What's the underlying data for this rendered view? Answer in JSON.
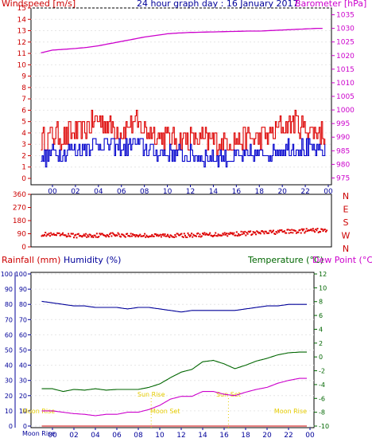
{
  "chart_data": [
    {
      "type": "line",
      "title": "24 hour graph day : 16 January 2017",
      "left_label": "Windspeed [m/s]",
      "right_label": "Barometer [hPa]",
      "x_ticks": [
        "00",
        "02",
        "04",
        "06",
        "08",
        "10",
        "12",
        "14",
        "16",
        "18",
        "20",
        "22",
        "00"
      ],
      "y_left_ticks": [
        0,
        1,
        2,
        3,
        4,
        5,
        6,
        7,
        8,
        9,
        10,
        11,
        12,
        13,
        14,
        15
      ],
      "y_left_range": [
        0,
        15
      ],
      "y_right_ticks": [
        975,
        980,
        985,
        990,
        995,
        1000,
        1005,
        1010,
        1015,
        1020,
        1025,
        1030,
        1035
      ],
      "y_right_range": [
        972.5,
        1037.5
      ],
      "colors": {
        "gust": "#dd0000",
        "average": "#0000cc",
        "barometer": "#cc00cc"
      },
      "series": [
        {
          "name": "Gust",
          "axis": "left",
          "x_hours": [
            -1,
            0,
            1,
            2,
            3,
            4,
            5,
            6,
            7,
            8,
            9,
            10,
            11,
            12,
            13,
            14,
            15,
            16,
            17,
            18,
            19,
            20,
            21,
            22,
            23
          ],
          "values": [
            3.2,
            3.8,
            3.7,
            4.0,
            4.5,
            5.2,
            4.6,
            4.1,
            5.0,
            4.3,
            3.9,
            3.6,
            3.5,
            3.4,
            3.4,
            3.3,
            3.2,
            3.3,
            3.5,
            3.5,
            3.9,
            4.6,
            4.9,
            4.3,
            4.1
          ]
        },
        {
          "name": "Average",
          "axis": "left",
          "x_hours": [
            -1,
            0,
            1,
            2,
            3,
            4,
            5,
            6,
            7,
            8,
            9,
            10,
            11,
            12,
            13,
            14,
            15,
            16,
            17,
            18,
            19,
            20,
            21,
            22,
            23
          ],
          "values": [
            1.6,
            2.4,
            2.3,
            2.5,
            2.8,
            3.1,
            2.9,
            2.6,
            3.1,
            2.7,
            2.4,
            2.2,
            2.1,
            2.0,
            2.0,
            1.9,
            1.8,
            1.9,
            2.0,
            2.1,
            2.4,
            2.7,
            2.9,
            2.6,
            2.4
          ]
        },
        {
          "name": "Barometer",
          "axis": "right",
          "x_hours": [
            -1,
            0,
            1,
            2,
            3,
            4,
            5,
            6,
            7,
            8,
            9,
            10,
            11,
            12,
            13,
            14,
            15,
            16,
            17,
            18,
            19,
            20,
            21,
            22,
            23
          ],
          "values": [
            1021,
            1022,
            1022.3,
            1022.6,
            1023,
            1023.6,
            1024.4,
            1025.2,
            1026,
            1026.8,
            1027.4,
            1028,
            1028.3,
            1028.5,
            1028.6,
            1028.7,
            1028.8,
            1028.9,
            1029,
            1029,
            1029.2,
            1029.4,
            1029.6,
            1029.8,
            1030
          ]
        }
      ]
    },
    {
      "type": "scatter",
      "y_left_ticks": [
        0,
        90,
        180,
        270,
        360
      ],
      "y_left_range": [
        0,
        360
      ],
      "y_right_ticks": [
        "N",
        "W",
        "S",
        "E",
        "N"
      ],
      "x_ticks": [
        "00",
        "02",
        "04",
        "06",
        "08",
        "10",
        "12",
        "14",
        "16",
        "18",
        "20",
        "22",
        "00"
      ],
      "series": [
        {
          "name": "Wind direction",
          "color": "#dd0000",
          "x_hours": [
            -1,
            0,
            1,
            2,
            3,
            4,
            5,
            6,
            7,
            8,
            9,
            10,
            11,
            12,
            13,
            14,
            15,
            16,
            17,
            18,
            19,
            20,
            21,
            22,
            23
          ],
          "values": [
            88,
            80,
            82,
            76,
            78,
            80,
            84,
            82,
            80,
            78,
            76,
            80,
            78,
            80,
            82,
            84,
            88,
            90,
            94,
            96,
            100,
            104,
            106,
            110,
            112
          ]
        }
      ]
    },
    {
      "type": "line",
      "left_label": "Rainfall (mm)",
      "left_label2": "Humidity (%)",
      "right_label": "Temperature (°C)",
      "right_label2": "Dew Point (°C)",
      "y_left_ticks": [
        0,
        10,
        20,
        30,
        40,
        50,
        60,
        70,
        80,
        90,
        100
      ],
      "y_left_range": [
        0,
        100
      ],
      "y_right_ticks": [
        -10,
        -8,
        -6,
        -4,
        -2,
        0,
        2,
        4,
        6,
        8,
        10,
        12
      ],
      "y_right_range": [
        -10,
        12
      ],
      "x_ticks": [
        "00",
        "02",
        "04",
        "06",
        "08",
        "10",
        "12",
        "14",
        "16",
        "18",
        "20",
        "22",
        "00"
      ],
      "annotations": [
        "Sun Rise",
        "Sun Set",
        "Moon Set",
        "Moon Rise",
        "Moon Rise"
      ],
      "colors": {
        "humidity": "#000099",
        "temperature": "#006600",
        "dewpoint": "#cc00cc",
        "rain": "#cc0000",
        "sun": "#e6cc00"
      },
      "series": [
        {
          "name": "Humidity",
          "axis": "left",
          "x_hours": [
            -1,
            0,
            1,
            2,
            3,
            4,
            5,
            6,
            7,
            8,
            9,
            10,
            11,
            12,
            13,
            14,
            15,
            16,
            17,
            18,
            19,
            20,
            21,
            22,
            23
          ],
          "values": [
            82,
            81,
            80,
            79,
            79,
            78,
            78,
            78,
            77,
            78,
            78,
            77,
            76,
            75,
            76,
            76,
            76,
            76,
            76,
            77,
            78,
            79,
            79,
            80,
            80
          ]
        },
        {
          "name": "Temperature",
          "axis": "right",
          "x_hours": [
            -1,
            0,
            1,
            2,
            3,
            4,
            5,
            6,
            7,
            8,
            9,
            10,
            11,
            12,
            13,
            14,
            15,
            16,
            17,
            18,
            19,
            20,
            21,
            22,
            23
          ],
          "values": [
            -4.6,
            -4.6,
            -5.0,
            -4.7,
            -4.8,
            -4.6,
            -4.8,
            -4.7,
            -4.7,
            -4.7,
            -4.4,
            -3.9,
            -3.0,
            -2.2,
            -1.8,
            -0.7,
            -0.5,
            -1.0,
            -1.7,
            -1.2,
            -0.6,
            -0.2,
            0.3,
            0.6,
            0.7
          ]
        },
        {
          "name": "Dew Point",
          "axis": "right",
          "x_hours": [
            -1,
            0,
            1,
            2,
            3,
            4,
            5,
            6,
            7,
            8,
            9,
            10,
            11,
            12,
            13,
            14,
            15,
            16,
            17,
            18,
            19,
            20,
            21,
            22,
            23
          ],
          "values": [
            -7.8,
            -7.8,
            -8.0,
            -8.2,
            -8.3,
            -8.5,
            -8.3,
            -8.3,
            -8.0,
            -8.0,
            -7.6,
            -7.0,
            -6.1,
            -5.7,
            -5.7,
            -5.0,
            -5.0,
            -5.4,
            -5.6,
            -5.1,
            -4.7,
            -4.4,
            -3.8,
            -3.4,
            -3.1
          ]
        },
        {
          "name": "Rainfall",
          "axis": "left",
          "x_hours": [
            -1,
            23
          ],
          "values": [
            0,
            0
          ]
        }
      ]
    }
  ]
}
